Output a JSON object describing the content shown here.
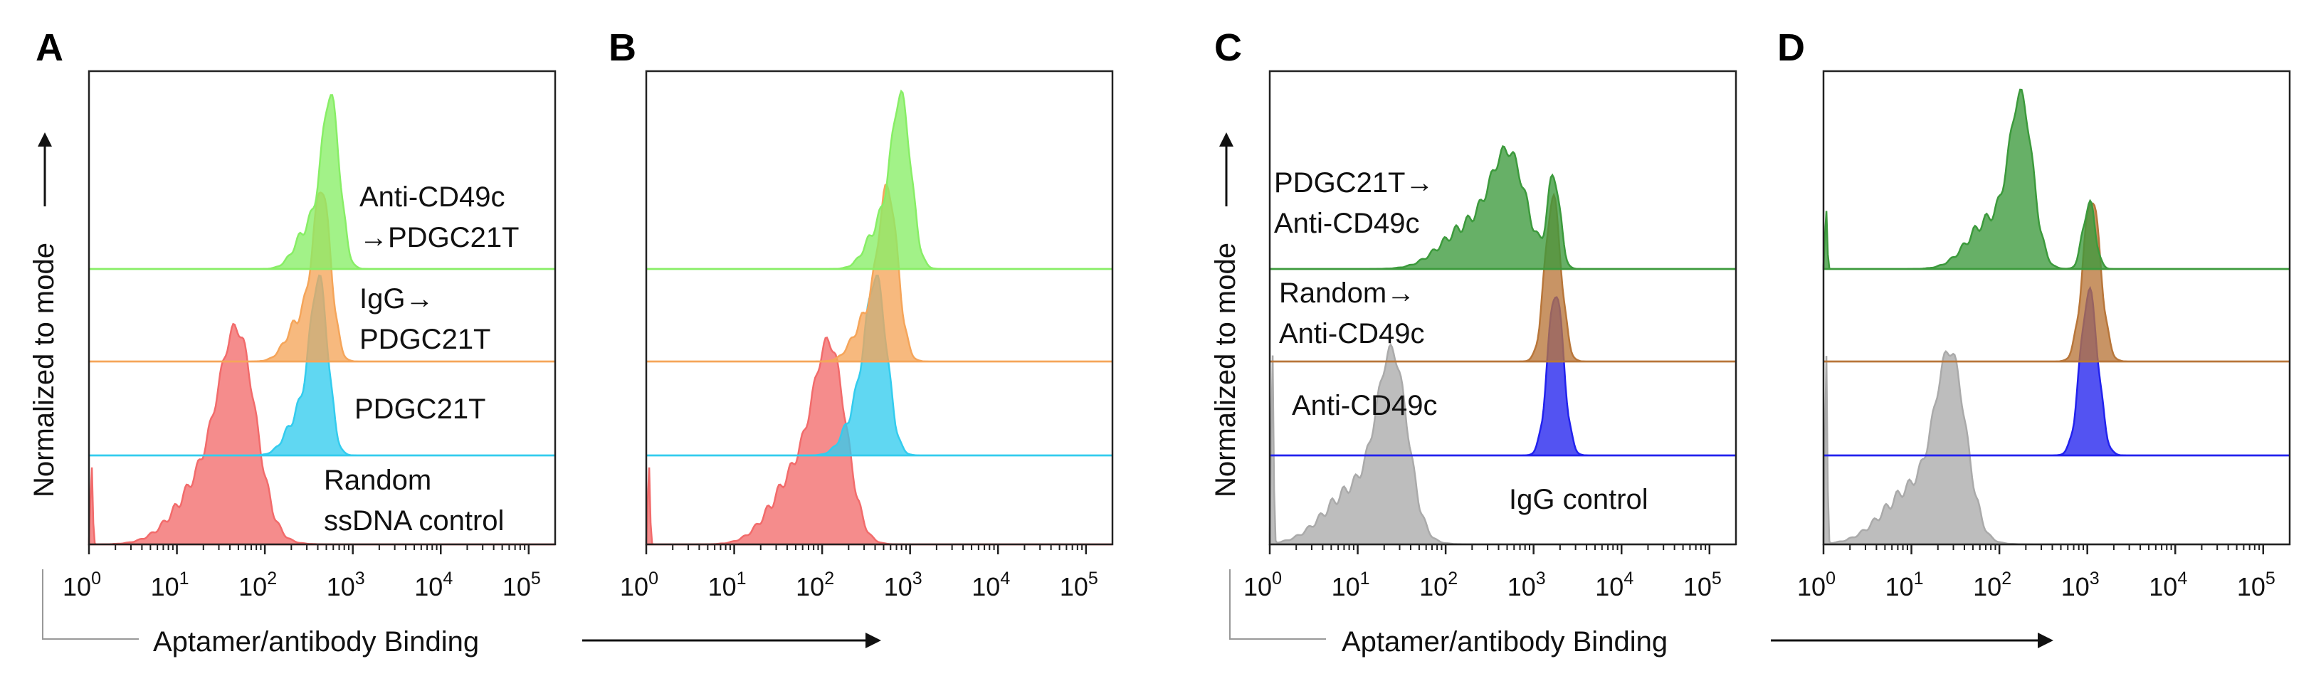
{
  "figure": {
    "x_axis_title": "Aptamer/antibody  Binding",
    "y_axis_title": "Normalized to mode",
    "tick_base": "10",
    "tick_exponents": [
      "0",
      "1",
      "2",
      "3",
      "4",
      "5"
    ]
  },
  "chart_data": [
    {
      "type": "histogram-overlay",
      "panel_label": "A",
      "x_scale": "log10",
      "xlim": [
        1,
        200000
      ],
      "xlabel": "Aptamer/antibody  Binding",
      "ylabel": "Normalized to mode",
      "series": [
        {
          "name": "Random ssDNA control",
          "label_lines": [
            "Random",
            "ssDNA control"
          ],
          "color": "#f26b6b",
          "peaks": [
            {
              "log_x": 1.7,
              "sigma": 0.2,
              "height": 1.0
            },
            {
              "log_x": 1.4,
              "sigma": 0.35,
              "height": 0.45
            }
          ],
          "spike_height": 0.45
        },
        {
          "name": "PDGC21T",
          "label_lines": [
            "PDGC21T"
          ],
          "color": "#33ccee",
          "peaks": [
            {
              "log_x": 2.62,
              "sigma": 0.1,
              "height": 1.0
            },
            {
              "log_x": 2.4,
              "sigma": 0.15,
              "height": 0.25
            }
          ]
        },
        {
          "name": "IgG→PDGC21T",
          "label_lines": [
            "IgG→",
            "PDGC21T"
          ],
          "color": "#f5a55a",
          "peaks": [
            {
              "log_x": 2.65,
              "sigma": 0.1,
              "height": 1.0
            },
            {
              "log_x": 2.4,
              "sigma": 0.15,
              "height": 0.25
            }
          ]
        },
        {
          "name": "Anti-CD49c→PDGC21T",
          "label_lines": [
            "Anti-CD49c",
            "→PDGC21T"
          ],
          "color": "#88ee66",
          "peaks": [
            {
              "log_x": 2.75,
              "sigma": 0.1,
              "height": 1.0
            },
            {
              "log_x": 2.5,
              "sigma": 0.15,
              "height": 0.25
            }
          ]
        }
      ]
    },
    {
      "type": "histogram-overlay",
      "panel_label": "B",
      "x_scale": "log10",
      "xlim": [
        1,
        200000
      ],
      "series": [
        {
          "name": "Random ssDNA control",
          "label_lines": [],
          "color": "#f26b6b",
          "peaks": [
            {
              "log_x": 2.1,
              "sigma": 0.18,
              "height": 1.0
            },
            {
              "log_x": 1.75,
              "sigma": 0.3,
              "height": 0.45
            }
          ],
          "spike_height": 0.45
        },
        {
          "name": "PDGC21T",
          "label_lines": [],
          "color": "#33ccee",
          "peaks": [
            {
              "log_x": 2.62,
              "sigma": 0.12,
              "height": 1.0
            },
            {
              "log_x": 2.4,
              "sigma": 0.15,
              "height": 0.25
            }
          ]
        },
        {
          "name": "IgG→PDGC21T",
          "label_lines": [],
          "color": "#f5a55a",
          "peaks": [
            {
              "log_x": 2.75,
              "sigma": 0.11,
              "height": 1.0
            },
            {
              "log_x": 2.5,
              "sigma": 0.15,
              "height": 0.25
            }
          ]
        },
        {
          "name": "Anti-CD49c→PDGC21T",
          "label_lines": [],
          "color": "#88ee66",
          "peaks": [
            {
              "log_x": 2.9,
              "sigma": 0.11,
              "height": 1.0
            },
            {
              "log_x": 2.65,
              "sigma": 0.15,
              "height": 0.25
            }
          ]
        }
      ]
    },
    {
      "type": "histogram-overlay",
      "panel_label": "C",
      "x_scale": "log10",
      "xlim": [
        1,
        200000
      ],
      "xlabel": "Aptamer/antibody  Binding",
      "ylabel": "Normalized to mode",
      "series": [
        {
          "name": "IgG control",
          "label_lines": [
            "IgG control"
          ],
          "color": "#aaaaaa",
          "peaks": [
            {
              "log_x": 1.4,
              "sigma": 0.17,
              "height": 1.0
            },
            {
              "log_x": 1.0,
              "sigma": 0.35,
              "height": 0.35
            }
          ],
          "spike_height": 1.15
        },
        {
          "name": "Anti-CD49c",
          "label_lines": [
            "Anti-CD49c"
          ],
          "color": "#2222ee",
          "peaks": [
            {
              "log_x": 3.25,
              "sigma": 0.09,
              "height": 1.0
            }
          ]
        },
        {
          "name": "Random→Anti-CD49c",
          "label_lines": [
            "Random→",
            "Anti-CD49c"
          ],
          "color": "#b8763a",
          "peaks": [
            {
              "log_x": 3.22,
              "sigma": 0.09,
              "height": 1.0
            }
          ]
        },
        {
          "name": "PDGC21T→Anti-CD49c",
          "label_lines": [
            "PDGC21T→",
            "Anti-CD49c"
          ],
          "color": "#3c9a3c",
          "peaks": [
            {
              "log_x": 2.72,
              "sigma": 0.2,
              "height": 0.65
            },
            {
              "log_x": 2.25,
              "sigma": 0.3,
              "height": 0.25
            },
            {
              "log_x": 3.23,
              "sigma": 0.07,
              "height": 0.55
            }
          ]
        }
      ]
    },
    {
      "type": "histogram-overlay",
      "panel_label": "D",
      "x_scale": "log10",
      "xlim": [
        1,
        200000
      ],
      "series": [
        {
          "name": "IgG control",
          "label_lines": [],
          "color": "#aaaaaa",
          "peaks": [
            {
              "log_x": 1.45,
              "sigma": 0.17,
              "height": 1.0
            },
            {
              "log_x": 1.05,
              "sigma": 0.35,
              "height": 0.35
            }
          ],
          "spike_height": 1.15
        },
        {
          "name": "Anti-CD49c",
          "label_lines": [],
          "color": "#2222ee",
          "peaks": [
            {
              "log_x": 3.02,
              "sigma": 0.1,
              "height": 1.0
            }
          ]
        },
        {
          "name": "Random→Anti-CD49c",
          "label_lines": [],
          "color": "#b8763a",
          "peaks": [
            {
              "log_x": 3.05,
              "sigma": 0.1,
              "height": 1.0
            }
          ]
        },
        {
          "name": "PDGC21T→Anti-CD49c",
          "label_lines": [],
          "color": "#3c9a3c",
          "peaks": [
            {
              "log_x": 2.25,
              "sigma": 0.13,
              "height": 0.95
            },
            {
              "log_x": 1.9,
              "sigma": 0.25,
              "height": 0.3
            },
            {
              "log_x": 3.02,
              "sigma": 0.07,
              "height": 0.4
            }
          ],
          "spike_height": 0.4
        }
      ]
    }
  ]
}
